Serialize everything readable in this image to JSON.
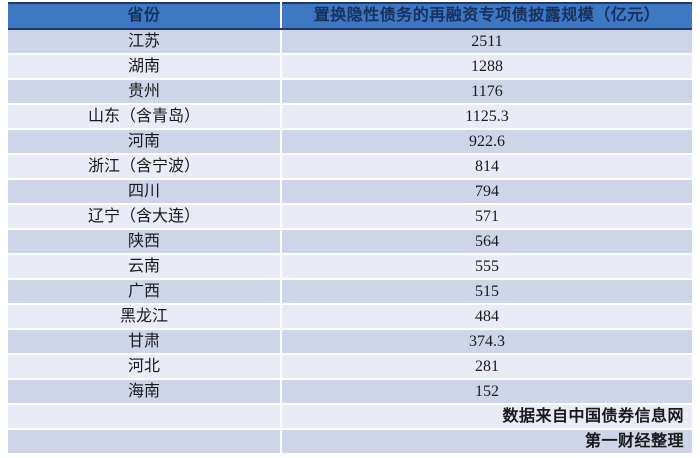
{
  "table": {
    "columns": [
      "省份",
      "置换隐性债务的再融资专项债披露规模（亿元）"
    ],
    "rows": [
      [
        "江苏",
        "2511"
      ],
      [
        "湖南",
        "1288"
      ],
      [
        "贵州",
        "1176"
      ],
      [
        "山东（含青岛）",
        "1125.3"
      ],
      [
        "河南",
        "922.6"
      ],
      [
        "浙江（含宁波）",
        "814"
      ],
      [
        "四川",
        "794"
      ],
      [
        "辽宁（含大连）",
        "571"
      ],
      [
        "陕西",
        "564"
      ],
      [
        "云南",
        "555"
      ],
      [
        "广西",
        "515"
      ],
      [
        "黑龙江",
        "484"
      ],
      [
        "甘肃",
        "374.3"
      ],
      [
        "河北",
        "281"
      ],
      [
        "海南",
        "152"
      ]
    ],
    "footnotes": [
      "数据来自中国债券信息网",
      "第一财经整理"
    ]
  },
  "chart_data": {
    "type": "table",
    "title": "",
    "columns": [
      "省份",
      "置换隐性债务的再融资专项债披露规模（亿元）"
    ],
    "categories": [
      "江苏",
      "湖南",
      "贵州",
      "山东（含青岛）",
      "河南",
      "浙江（含宁波）",
      "四川",
      "辽宁（含大连）",
      "陕西",
      "云南",
      "广西",
      "黑龙江",
      "甘肃",
      "河北",
      "海南"
    ],
    "values": [
      2511,
      1288,
      1176,
      1125.3,
      922.6,
      814,
      794,
      571,
      564,
      555,
      515,
      484,
      374.3,
      281,
      152
    ],
    "unit": "亿元",
    "annotations": [
      "数据来自中国债券信息网",
      "第一财经整理"
    ]
  },
  "colors": {
    "header_bg": "#3E78C5",
    "header_border": "#1F3864",
    "header_text": "#17305C",
    "band_dark": "#CFD5E8",
    "band_light": "#E9EBF6",
    "row_divider": "#FFFFFF",
    "body_text": "#1A1A1A"
  }
}
